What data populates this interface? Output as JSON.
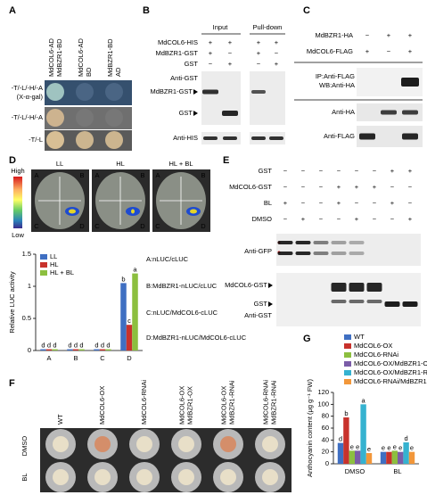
{
  "panels": {
    "A": {
      "label": "A",
      "columns": [
        [
          "MdCOL6-AD",
          "MdBZR1-BD"
        ],
        [
          "MdCOL6-AD",
          "BD"
        ],
        [
          "MdBZR1-BD",
          "AD"
        ]
      ],
      "rows": [
        "-T/-L/-H/-A",
        "-T/-L/-H/-A",
        "-T/-L"
      ],
      "row_note": "(X-α-gal)"
    },
    "B": {
      "label": "B",
      "groups": [
        "Input",
        "Pull-down"
      ],
      "conditions": [
        {
          "name": "MdCOL6-HIS",
          "signs": [
            "+",
            "+",
            "+",
            "+"
          ]
        },
        {
          "name": "MdBZR1-GST",
          "signs": [
            "+",
            "−",
            "+",
            "−"
          ]
        },
        {
          "name": "GST",
          "signs": [
            "−",
            "+",
            "−",
            "+"
          ]
        }
      ],
      "antibodies": [
        "Anti-GST",
        "Anti-HIS"
      ],
      "bands": [
        "MdBZR1-GST",
        "GST"
      ]
    },
    "C": {
      "label": "C",
      "conditions": [
        {
          "name": "MdBZR1-HA",
          "signs": [
            "−",
            "+",
            "+"
          ]
        },
        {
          "name": "MdCOL6-FLAG",
          "signs": [
            "+",
            "−",
            "+"
          ]
        }
      ],
      "blots": [
        "IP:Anti-FLAG",
        "WB:Anti-HA",
        "Anti-HA",
        "Anti-FLAG"
      ]
    },
    "D": {
      "label": "D",
      "scale": [
        "High",
        "Low"
      ],
      "treatments": [
        "LL",
        "HL",
        "HL + BL"
      ],
      "quadrants": [
        "A",
        "B",
        "C",
        "D"
      ]
    },
    "E": {
      "label": "E",
      "conditions": [
        {
          "name": "GST",
          "signs": [
            "−",
            "−",
            "−",
            "−",
            "−",
            "−",
            "+",
            "+"
          ]
        },
        {
          "name": "MdCOL6-GST",
          "signs": [
            "−",
            "−",
            "−",
            "+",
            "+",
            "+",
            "−",
            "−"
          ]
        },
        {
          "name": "BL",
          "signs": [
            "+",
            "−",
            "−",
            "+",
            "−",
            "−",
            "+",
            "−"
          ]
        },
        {
          "name": "DMSO",
          "signs": [
            "−",
            "+",
            "−",
            "−",
            "+",
            "−",
            "−",
            "+"
          ]
        }
      ],
      "antibodies": [
        "Anti-GFP",
        "Anti-GST"
      ],
      "bands": [
        "MdCOL6-GST",
        "GST"
      ]
    },
    "F": {
      "label": "F",
      "lines": [
        [
          "WT"
        ],
        [
          "MdCOL6-OX"
        ],
        [
          "MdCOL6-RNAi"
        ],
        [
          "MdCOL6-OX",
          "MdBZR1-OX"
        ],
        [
          "MdCOL6-OX",
          "MdBZR1-RNAi"
        ],
        [
          "MdCOL6-RNAi",
          "MdBZR1-RNAi"
        ]
      ],
      "treatments": [
        "DMSO",
        "BL"
      ]
    },
    "G": {
      "label": "G"
    }
  },
  "chart_data": [
    {
      "type": "bar",
      "ylabel": "Relative LUC activity",
      "categories": [
        "A",
        "B",
        "C",
        "D"
      ],
      "series": [
        {
          "name": "LL",
          "color": "#3f6fc2",
          "values": [
            0.02,
            0.02,
            0.02,
            1.05
          ],
          "letters": [
            "d",
            "d",
            "d",
            "b"
          ]
        },
        {
          "name": "HL",
          "color": "#c8322c",
          "values": [
            0.02,
            0.02,
            0.02,
            0.4
          ],
          "letters": [
            "d",
            "d",
            "d",
            "c"
          ]
        },
        {
          "name": "HL + BL",
          "color": "#8cbf3f",
          "values": [
            0.02,
            0.02,
            0.02,
            1.2
          ],
          "letters": [
            "d",
            "d",
            "d",
            "a"
          ]
        }
      ],
      "ylim": [
        0,
        1.5
      ],
      "yticks": [
        0,
        0.5,
        1,
        1.5
      ],
      "legend": "upper left",
      "key": [
        "A:nLUC/cLUC",
        "B:MdBZR1-nLUC/cLUC",
        "C:nLUC/MdCOL6-cLUC",
        "D:MdBZR1-nLUC/MdCOL6-cLUC"
      ]
    },
    {
      "type": "bar",
      "ylabel": "Anthocyanin content (μg g⁻¹ FW)",
      "categories": [
        "DMSO",
        "BL"
      ],
      "series": [
        {
          "name": "WT",
          "color": "#3f6fc2",
          "values": [
            35,
            20
          ],
          "letters": [
            "d",
            "e"
          ]
        },
        {
          "name": "MdCOL6-OX",
          "color": "#c8322c",
          "values": [
            78,
            20
          ],
          "letters": [
            "b",
            "e"
          ]
        },
        {
          "name": "MdCOL6-RNAi",
          "color": "#8cbf3f",
          "values": [
            22,
            22
          ],
          "letters": [
            "e",
            "e"
          ]
        },
        {
          "name": "MdCOL6-OX/MdBZR1-OX",
          "color": "#7a5ca8",
          "values": [
            22,
            20
          ],
          "letters": [
            "e",
            "e"
          ]
        },
        {
          "name": "MdCOL6-OX/MdBZR1-RNAi",
          "color": "#35b2d0",
          "values": [
            100,
            36
          ],
          "letters": [
            "a",
            "d"
          ]
        },
        {
          "name": "MdCOL6-RNAi/MdBZR1-RNAi",
          "color": "#f2973a",
          "values": [
            18,
            20
          ],
          "letters": [
            "e",
            "e"
          ]
        }
      ],
      "ylim": [
        0,
        120
      ],
      "yticks": [
        0,
        20,
        40,
        60,
        80,
        100,
        120
      ],
      "legend": "above"
    }
  ]
}
